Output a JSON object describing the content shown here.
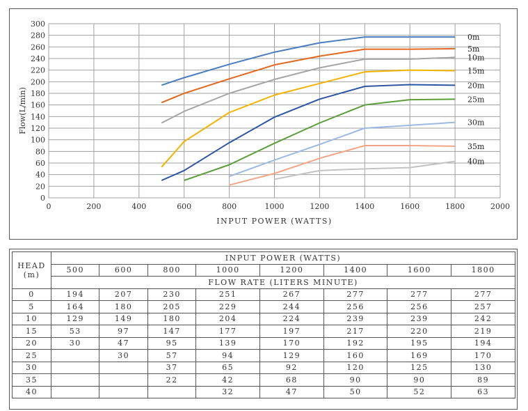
{
  "chart_data": {
    "type": "line",
    "xlabel": "INPUT POWER (WATTS)",
    "ylabel": "Flow(L/min)",
    "xlim": [
      0,
      2000
    ],
    "ylim": [
      0,
      300
    ],
    "xticks": [
      0,
      200,
      400,
      600,
      800,
      1000,
      1200,
      1400,
      1600,
      1800,
      2000
    ],
    "yticks": [
      0,
      20,
      40,
      60,
      80,
      100,
      120,
      140,
      160,
      180,
      200,
      220,
      240,
      260,
      280,
      300
    ],
    "grid": true,
    "x": [
      500,
      600,
      800,
      1000,
      1200,
      1400,
      1600,
      1800
    ],
    "series": [
      {
        "name": "0m",
        "color": "#4a7ebf",
        "values": [
          194,
          207,
          230,
          251,
          267,
          277,
          277,
          277
        ]
      },
      {
        "name": "5m",
        "color": "#e0691f",
        "values": [
          164,
          180,
          205,
          229,
          244,
          256,
          256,
          257
        ]
      },
      {
        "name": "10m",
        "color": "#a5a5a5",
        "values": [
          129,
          149,
          180,
          204,
          224,
          239,
          239,
          242
        ]
      },
      {
        "name": "15m",
        "color": "#f2b300",
        "values": [
          53,
          97,
          147,
          177,
          197,
          217,
          220,
          219
        ]
      },
      {
        "name": "20m",
        "color": "#2e55a3",
        "values": [
          30,
          47,
          95,
          139,
          170,
          192,
          195,
          194
        ]
      },
      {
        "name": "25m",
        "color": "#5c9e3a",
        "values": [
          null,
          30,
          57,
          94,
          129,
          160,
          169,
          170
        ]
      },
      {
        "name": "30m",
        "color": "#9bb9e2",
        "values": [
          null,
          null,
          37,
          65,
          92,
          120,
          125,
          130
        ]
      },
      {
        "name": "35m",
        "color": "#f3a588",
        "values": [
          null,
          null,
          22,
          42,
          68,
          90,
          90,
          89
        ]
      },
      {
        "name": "40m",
        "color": "#c3c3c3",
        "values": [
          null,
          null,
          null,
          32,
          47,
          50,
          52,
          63
        ]
      }
    ]
  },
  "table": {
    "head_label": "HEAD",
    "head_unit": "(m)",
    "power_header": "INPUT POWER (WATTS)",
    "flow_header": "FLOW RATE (LITERS MINUTE)",
    "powers": [
      "500",
      "600",
      "800",
      "1000",
      "1200",
      "1400",
      "1600",
      "1800"
    ],
    "rows": [
      {
        "head": "0",
        "values": [
          "194",
          "207",
          "230",
          "251",
          "267",
          "277",
          "277",
          "277"
        ]
      },
      {
        "head": "5",
        "values": [
          "164",
          "180",
          "205",
          "229",
          "244",
          "256",
          "256",
          "257"
        ]
      },
      {
        "head": "10",
        "values": [
          "129",
          "149",
          "180",
          "204",
          "224",
          "239",
          "239",
          "242"
        ]
      },
      {
        "head": "15",
        "values": [
          "53",
          "97",
          "147",
          "177",
          "197",
          "217",
          "220",
          "219"
        ]
      },
      {
        "head": "20",
        "values": [
          "30",
          "47",
          "95",
          "139",
          "170",
          "192",
          "195",
          "194"
        ]
      },
      {
        "head": "25",
        "values": [
          "",
          "30",
          "57",
          "94",
          "129",
          "160",
          "169",
          "170"
        ]
      },
      {
        "head": "30",
        "values": [
          "",
          "",
          "37",
          "65",
          "92",
          "120",
          "125",
          "130"
        ]
      },
      {
        "head": "35",
        "values": [
          "",
          "",
          "22",
          "42",
          "68",
          "90",
          "90",
          "89"
        ]
      },
      {
        "head": "40",
        "values": [
          "",
          "",
          "",
          "32",
          "47",
          "50",
          "52",
          "63"
        ]
      }
    ]
  }
}
